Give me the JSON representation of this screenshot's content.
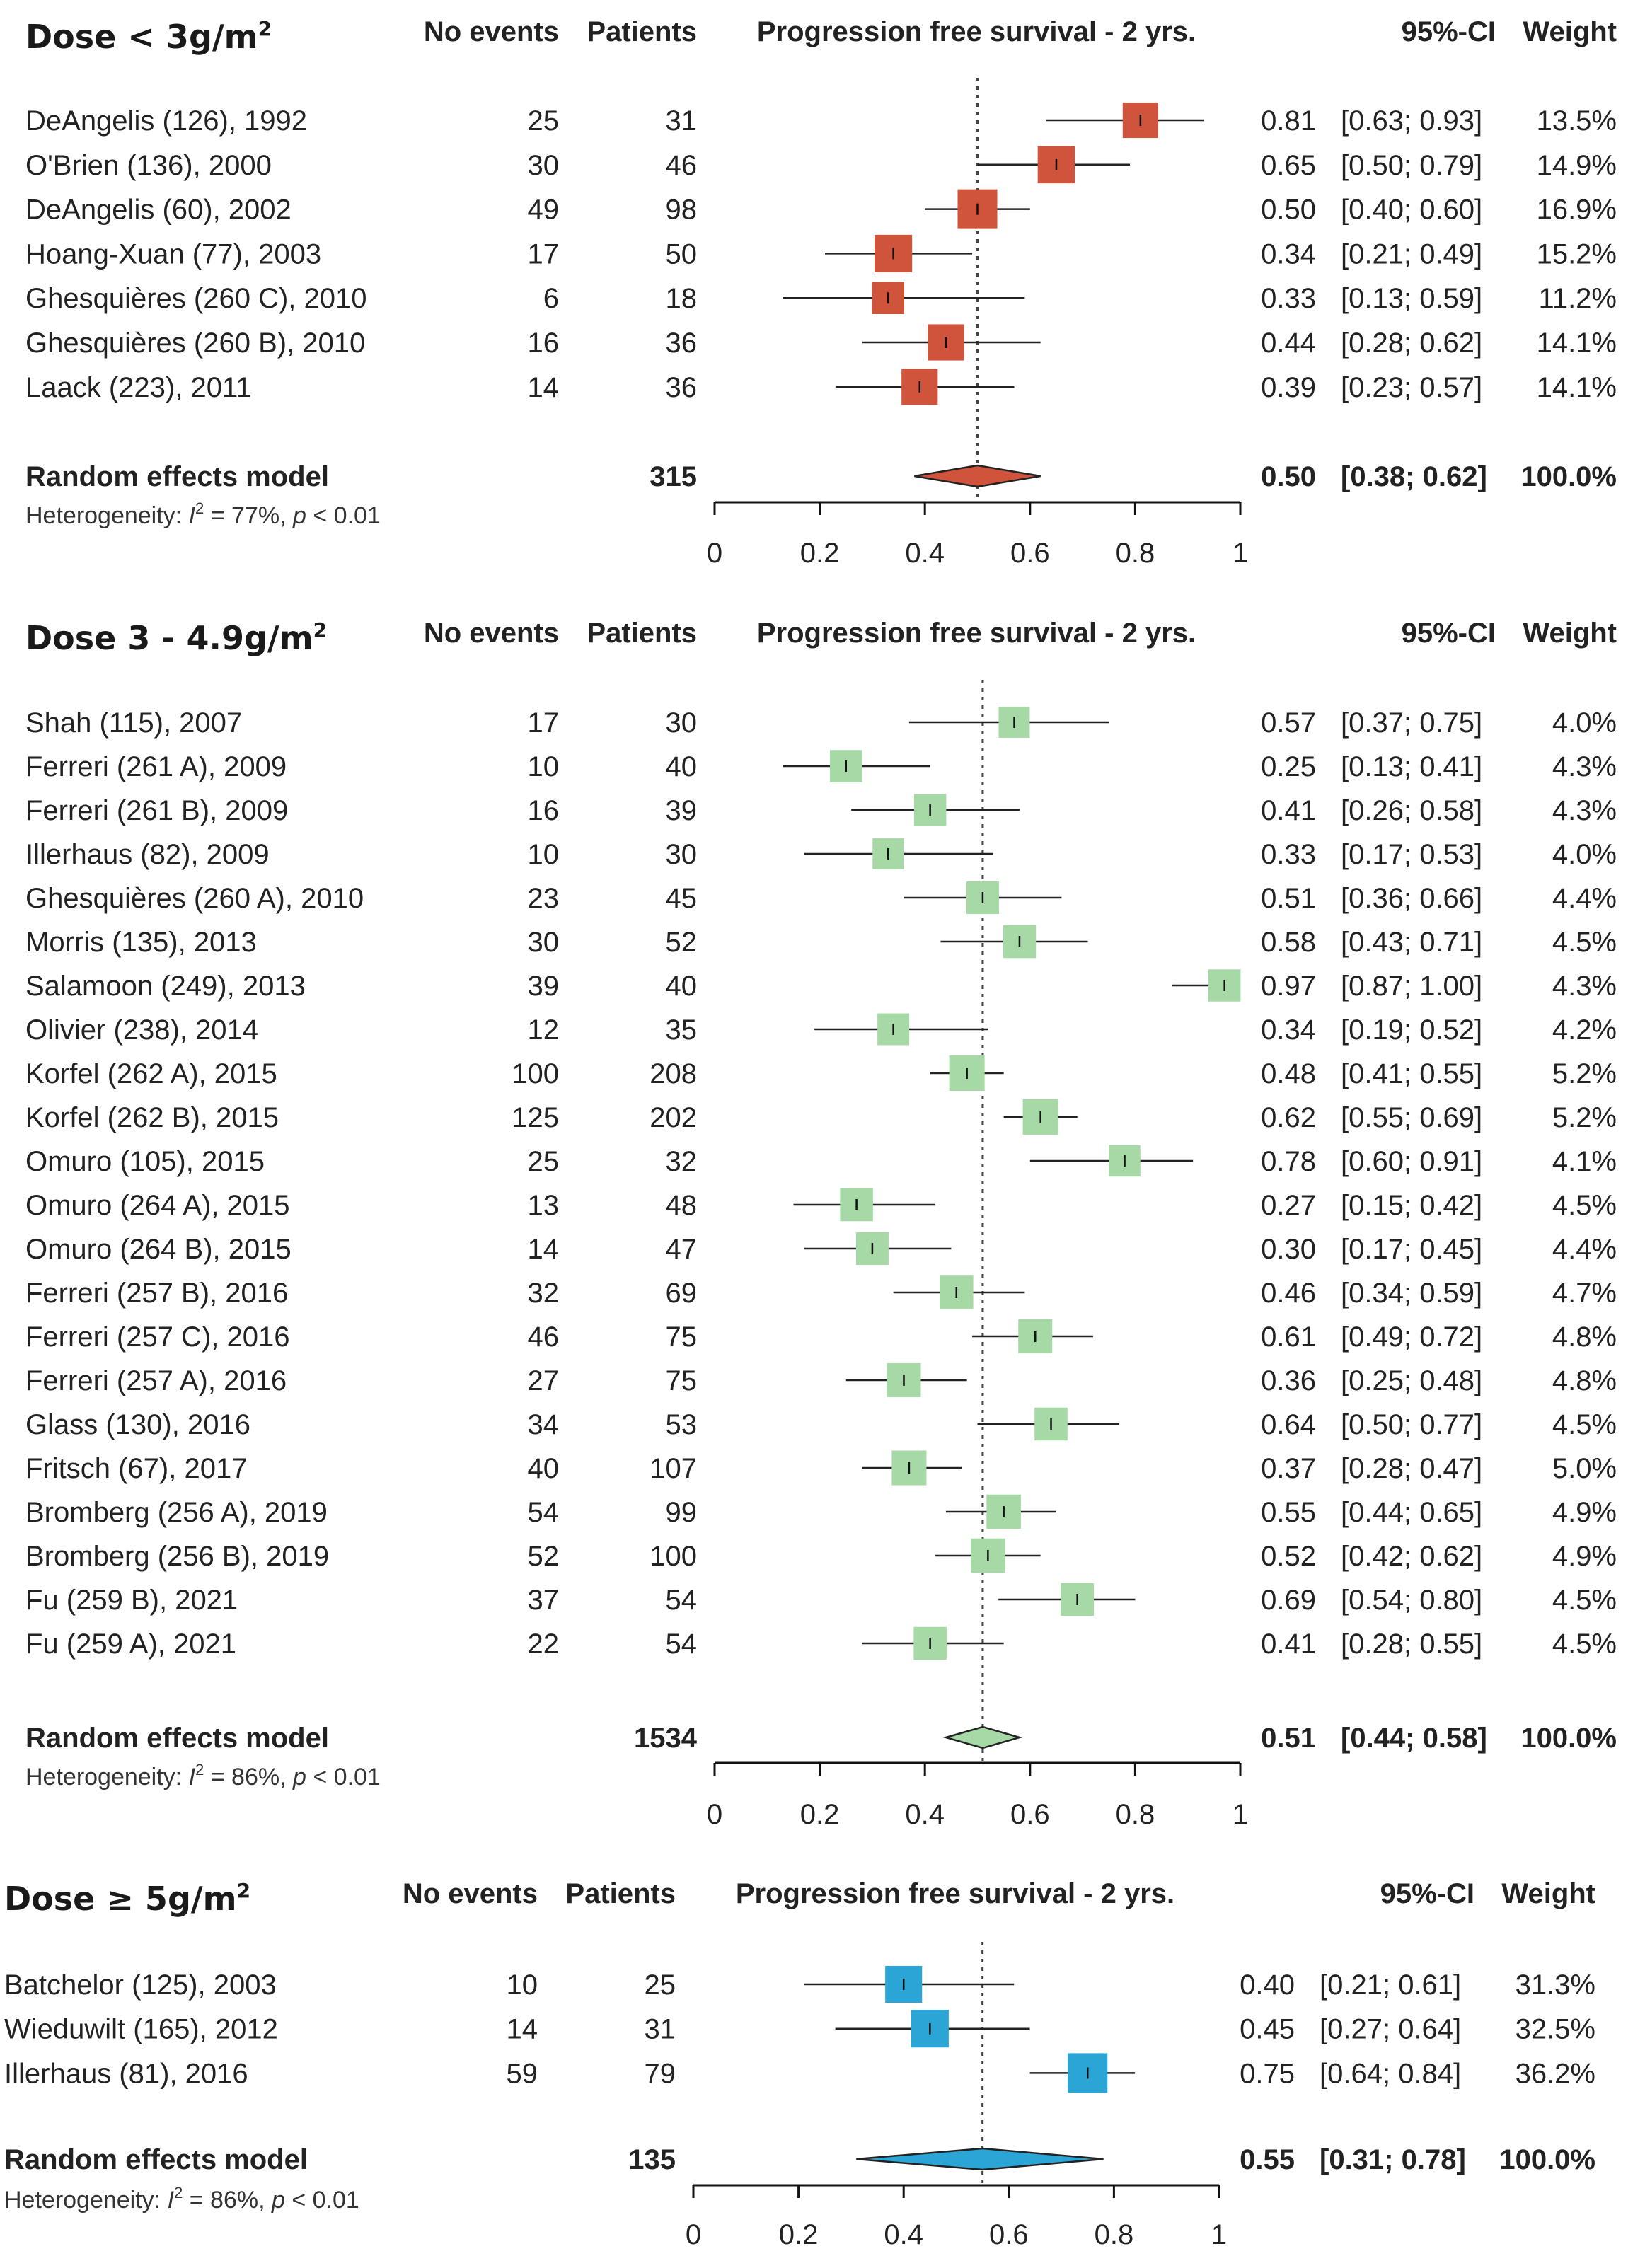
{
  "chart_data": [
    {
      "type": "forest",
      "title": "Dose < 3g/m²",
      "title_base": "Dose < 3g/m",
      "title_sup": "2",
      "header": {
        "events": "No events",
        "patients": "Patients",
        "outcome": "Progression free survival - 2 yrs.",
        "ci": "95%-CI",
        "weight": "Weight"
      },
      "marker_color": "#d0533b",
      "xlim": [
        0,
        1
      ],
      "x_ticks": [
        "0",
        "0.2",
        "0.4",
        "0.6",
        "0.8",
        "1"
      ],
      "studies": [
        {
          "study": "DeAngelis (126), 1992",
          "events": "25",
          "patients": "31",
          "estimate": 0.81,
          "lower": 0.63,
          "upper": 0.93,
          "est_label": "0.81",
          "ci_label": "[0.63; 0.93]",
          "weight": 13.5,
          "weight_label": "13.5%"
        },
        {
          "study": "O'Brien (136), 2000",
          "events": "30",
          "patients": "46",
          "estimate": 0.65,
          "lower": 0.5,
          "upper": 0.79,
          "est_label": "0.65",
          "ci_label": "[0.50; 0.79]",
          "weight": 14.9,
          "weight_label": "14.9%"
        },
        {
          "study": "DeAngelis (60), 2002",
          "events": "49",
          "patients": "98",
          "estimate": 0.5,
          "lower": 0.4,
          "upper": 0.6,
          "est_label": "0.50",
          "ci_label": "[0.40; 0.60]",
          "weight": 16.9,
          "weight_label": "16.9%"
        },
        {
          "study": "Hoang-Xuan (77), 2003",
          "events": "17",
          "patients": "50",
          "estimate": 0.34,
          "lower": 0.21,
          "upper": 0.49,
          "est_label": "0.34",
          "ci_label": "[0.21; 0.49]",
          "weight": 15.2,
          "weight_label": "15.2%"
        },
        {
          "study": "Ghesquières (260 C), 2010",
          "events": "6",
          "patients": "18",
          "estimate": 0.33,
          "lower": 0.13,
          "upper": 0.59,
          "est_label": "0.33",
          "ci_label": "[0.13; 0.59]",
          "weight": 11.2,
          "weight_label": "11.2%"
        },
        {
          "study": "Ghesquières (260 B), 2010",
          "events": "16",
          "patients": "36",
          "estimate": 0.44,
          "lower": 0.28,
          "upper": 0.62,
          "est_label": "0.44",
          "ci_label": "[0.28; 0.62]",
          "weight": 14.1,
          "weight_label": "14.1%"
        },
        {
          "study": "Laack (223), 2011",
          "events": "14",
          "patients": "36",
          "estimate": 0.39,
          "lower": 0.23,
          "upper": 0.57,
          "est_label": "0.39",
          "ci_label": "[0.23; 0.57]",
          "weight": 14.1,
          "weight_label": "14.1%"
        }
      ],
      "pooled": {
        "label": "Random effects model",
        "patients": "315",
        "estimate": 0.5,
        "lower": 0.38,
        "upper": 0.62,
        "est_label": "0.50",
        "ci_label": "[0.38; 0.62]",
        "weight_label": "100.0%"
      },
      "heterogeneity": {
        "prefix": "Heterogeneity: ",
        "i2_label": "I",
        "i2_sup": "2",
        "i2_value": " = 77%, ",
        "p_label": "p",
        "p_value": " < 0.01"
      }
    },
    {
      "type": "forest",
      "title": "Dose 3 - 4.9g/m²",
      "title_base": "Dose 3 - 4.9g/m",
      "title_sup": "2",
      "header": {
        "events": "No events",
        "patients": "Patients",
        "outcome": "Progression free survival - 2 yrs.",
        "ci": "95%-CI",
        "weight": "Weight"
      },
      "marker_color": "#a6d9a6",
      "xlim": [
        0,
        1
      ],
      "x_ticks": [
        "0",
        "0.2",
        "0.4",
        "0.6",
        "0.8",
        "1"
      ],
      "studies": [
        {
          "study": "Shah (115), 2007",
          "events": "17",
          "patients": "30",
          "estimate": 0.57,
          "lower": 0.37,
          "upper": 0.75,
          "est_label": "0.57",
          "ci_label": "[0.37; 0.75]",
          "weight": 4.0,
          "weight_label": "4.0%"
        },
        {
          "study": "Ferreri (261 A), 2009",
          "events": "10",
          "patients": "40",
          "estimate": 0.25,
          "lower": 0.13,
          "upper": 0.41,
          "est_label": "0.25",
          "ci_label": "[0.13; 0.41]",
          "weight": 4.3,
          "weight_label": "4.3%"
        },
        {
          "study": "Ferreri (261 B), 2009",
          "events": "16",
          "patients": "39",
          "estimate": 0.41,
          "lower": 0.26,
          "upper": 0.58,
          "est_label": "0.41",
          "ci_label": "[0.26; 0.58]",
          "weight": 4.3,
          "weight_label": "4.3%"
        },
        {
          "study": "Illerhaus (82), 2009",
          "events": "10",
          "patients": "30",
          "estimate": 0.33,
          "lower": 0.17,
          "upper": 0.53,
          "est_label": "0.33",
          "ci_label": "[0.17; 0.53]",
          "weight": 4.0,
          "weight_label": "4.0%"
        },
        {
          "study": "Ghesquières (260 A), 2010",
          "events": "23",
          "patients": "45",
          "estimate": 0.51,
          "lower": 0.36,
          "upper": 0.66,
          "est_label": "0.51",
          "ci_label": "[0.36; 0.66]",
          "weight": 4.4,
          "weight_label": "4.4%"
        },
        {
          "study": "Morris (135), 2013",
          "events": "30",
          "patients": "52",
          "estimate": 0.58,
          "lower": 0.43,
          "upper": 0.71,
          "est_label": "0.58",
          "ci_label": "[0.43; 0.71]",
          "weight": 4.5,
          "weight_label": "4.5%"
        },
        {
          "study": "Salamoon (249), 2013",
          "events": "39",
          "patients": "40",
          "estimate": 0.97,
          "lower": 0.87,
          "upper": 1.0,
          "est_label": "0.97",
          "ci_label": "[0.87; 1.00]",
          "weight": 4.3,
          "weight_label": "4.3%"
        },
        {
          "study": "Olivier (238), 2014",
          "events": "12",
          "patients": "35",
          "estimate": 0.34,
          "lower": 0.19,
          "upper": 0.52,
          "est_label": "0.34",
          "ci_label": "[0.19; 0.52]",
          "weight": 4.2,
          "weight_label": "4.2%"
        },
        {
          "study": "Korfel (262 A), 2015",
          "events": "100",
          "patients": "208",
          "estimate": 0.48,
          "lower": 0.41,
          "upper": 0.55,
          "est_label": "0.48",
          "ci_label": "[0.41; 0.55]",
          "weight": 5.2,
          "weight_label": "5.2%"
        },
        {
          "study": "Korfel (262 B), 2015",
          "events": "125",
          "patients": "202",
          "estimate": 0.62,
          "lower": 0.55,
          "upper": 0.69,
          "est_label": "0.62",
          "ci_label": "[0.55; 0.69]",
          "weight": 5.2,
          "weight_label": "5.2%"
        },
        {
          "study": "Omuro (105), 2015",
          "events": "25",
          "patients": "32",
          "estimate": 0.78,
          "lower": 0.6,
          "upper": 0.91,
          "est_label": "0.78",
          "ci_label": "[0.60; 0.91]",
          "weight": 4.1,
          "weight_label": "4.1%"
        },
        {
          "study": "Omuro (264 A), 2015",
          "events": "13",
          "patients": "48",
          "estimate": 0.27,
          "lower": 0.15,
          "upper": 0.42,
          "est_label": "0.27",
          "ci_label": "[0.15; 0.42]",
          "weight": 4.5,
          "weight_label": "4.5%"
        },
        {
          "study": "Omuro (264 B), 2015",
          "events": "14",
          "patients": "47",
          "estimate": 0.3,
          "lower": 0.17,
          "upper": 0.45,
          "est_label": "0.30",
          "ci_label": "[0.17; 0.45]",
          "weight": 4.4,
          "weight_label": "4.4%"
        },
        {
          "study": "Ferreri (257 B), 2016",
          "events": "32",
          "patients": "69",
          "estimate": 0.46,
          "lower": 0.34,
          "upper": 0.59,
          "est_label": "0.46",
          "ci_label": "[0.34; 0.59]",
          "weight": 4.7,
          "weight_label": "4.7%"
        },
        {
          "study": "Ferreri (257 C), 2016",
          "events": "46",
          "patients": "75",
          "estimate": 0.61,
          "lower": 0.49,
          "upper": 0.72,
          "est_label": "0.61",
          "ci_label": "[0.49; 0.72]",
          "weight": 4.8,
          "weight_label": "4.8%"
        },
        {
          "study": "Ferreri (257 A), 2016",
          "events": "27",
          "patients": "75",
          "estimate": 0.36,
          "lower": 0.25,
          "upper": 0.48,
          "est_label": "0.36",
          "ci_label": "[0.25; 0.48]",
          "weight": 4.8,
          "weight_label": "4.8%"
        },
        {
          "study": "Glass (130), 2016",
          "events": "34",
          "patients": "53",
          "estimate": 0.64,
          "lower": 0.5,
          "upper": 0.77,
          "est_label": "0.64",
          "ci_label": "[0.50; 0.77]",
          "weight": 4.5,
          "weight_label": "4.5%"
        },
        {
          "study": "Fritsch (67), 2017",
          "events": "40",
          "patients": "107",
          "estimate": 0.37,
          "lower": 0.28,
          "upper": 0.47,
          "est_label": "0.37",
          "ci_label": "[0.28; 0.47]",
          "weight": 5.0,
          "weight_label": "5.0%"
        },
        {
          "study": "Bromberg (256 A), 2019",
          "events": "54",
          "patients": "99",
          "estimate": 0.55,
          "lower": 0.44,
          "upper": 0.65,
          "est_label": "0.55",
          "ci_label": "[0.44; 0.65]",
          "weight": 4.9,
          "weight_label": "4.9%"
        },
        {
          "study": "Bromberg (256 B), 2019",
          "events": "52",
          "patients": "100",
          "estimate": 0.52,
          "lower": 0.42,
          "upper": 0.62,
          "est_label": "0.52",
          "ci_label": "[0.42; 0.62]",
          "weight": 4.9,
          "weight_label": "4.9%"
        },
        {
          "study": "Fu (259  B), 2021",
          "events": "37",
          "patients": "54",
          "estimate": 0.69,
          "lower": 0.54,
          "upper": 0.8,
          "est_label": "0.69",
          "ci_label": "[0.54; 0.80]",
          "weight": 4.5,
          "weight_label": "4.5%"
        },
        {
          "study": "Fu (259 A), 2021",
          "events": "22",
          "patients": "54",
          "estimate": 0.41,
          "lower": 0.28,
          "upper": 0.55,
          "est_label": "0.41",
          "ci_label": "[0.28; 0.55]",
          "weight": 4.5,
          "weight_label": "4.5%"
        }
      ],
      "pooled": {
        "label": "Random effects model",
        "patients": "1534",
        "estimate": 0.51,
        "lower": 0.44,
        "upper": 0.58,
        "est_label": "0.51",
        "ci_label": "[0.44; 0.58]",
        "weight_label": "100.0%"
      },
      "heterogeneity": {
        "prefix": "Heterogeneity: ",
        "i2_label": "I",
        "i2_sup": "2",
        "i2_value": " = 86%, ",
        "p_label": "p",
        "p_value": " < 0.01"
      }
    },
    {
      "type": "forest",
      "title": "Dose ≥ 5g/m²",
      "title_base": "Dose ≥ 5g/m",
      "title_sup": "2",
      "header": {
        "events": "No events",
        "patients": "Patients",
        "outcome": "Progression free survival - 2 yrs.",
        "ci": "95%-CI",
        "weight": "Weight"
      },
      "marker_color": "#2aa5d6",
      "xlim": [
        0,
        1
      ],
      "x_ticks": [
        "0",
        "0.2",
        "0.4",
        "0.6",
        "0.8",
        "1"
      ],
      "studies": [
        {
          "study": "Batchelor (125), 2003",
          "events": "10",
          "patients": "25",
          "estimate": 0.4,
          "lower": 0.21,
          "upper": 0.61,
          "est_label": "0.40",
          "ci_label": "[0.21; 0.61]",
          "weight": 31.3,
          "weight_label": "31.3%"
        },
        {
          "study": "Wieduwilt (165), 2012",
          "events": "14",
          "patients": "31",
          "estimate": 0.45,
          "lower": 0.27,
          "upper": 0.64,
          "est_label": "0.45",
          "ci_label": "[0.27; 0.64]",
          "weight": 32.5,
          "weight_label": "32.5%"
        },
        {
          "study": "Illerhaus (81), 2016",
          "events": "59",
          "patients": "79",
          "estimate": 0.75,
          "lower": 0.64,
          "upper": 0.84,
          "est_label": "0.75",
          "ci_label": "[0.64; 0.84]",
          "weight": 36.2,
          "weight_label": "36.2%"
        }
      ],
      "pooled": {
        "label": "Random effects model",
        "patients": "135",
        "estimate": 0.55,
        "lower": 0.31,
        "upper": 0.78,
        "est_label": "0.55",
        "ci_label": "[0.31; 0.78]",
        "weight_label": "100.0%"
      },
      "heterogeneity": {
        "prefix": "Heterogeneity: ",
        "i2_label": "I",
        "i2_sup": "2",
        "i2_value": " = 86%, ",
        "p_label": "p",
        "p_value": " < 0.01"
      }
    }
  ]
}
